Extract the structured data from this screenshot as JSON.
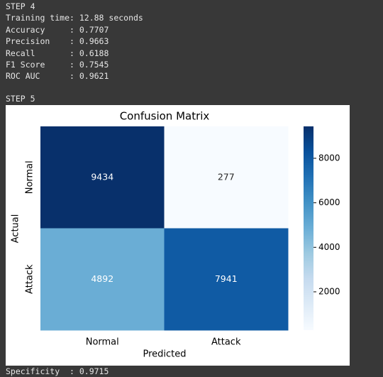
{
  "output_before": [
    "STEP 4",
    "Training time: 12.88 seconds",
    "Accuracy     : 0.7707",
    "Precision    : 0.9663",
    "Recall       : 0.6188",
    "F1 Score     : 0.7545",
    "ROC AUC      : 0.9621"
  ],
  "step_label": "STEP 5",
  "output_after": [
    "Specificity  : 0.9715"
  ],
  "chart_data": {
    "type": "heatmap",
    "title": "Confusion Matrix",
    "xlabel": "Predicted",
    "ylabel": "Actual",
    "x_categories": [
      "Normal",
      "Attack"
    ],
    "y_categories": [
      "Normal",
      "Attack"
    ],
    "values": [
      [
        9434,
        277
      ],
      [
        4892,
        7941
      ]
    ],
    "colormap": "Blues",
    "clim": [
      277,
      9434
    ],
    "cticks": [
      2000,
      4000,
      6000,
      8000
    ]
  }
}
